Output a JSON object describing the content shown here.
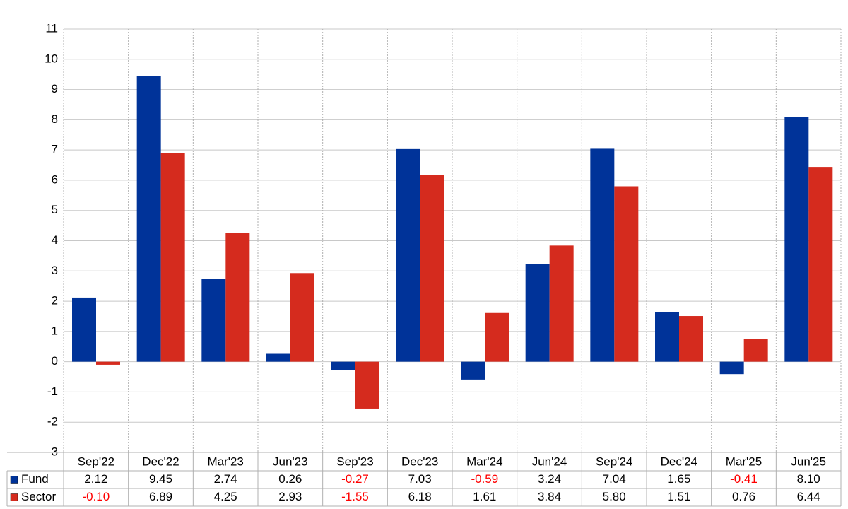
{
  "chart_data": {
    "type": "bar",
    "categories": [
      "Sep'22",
      "Dec'22",
      "Mar'23",
      "Jun'23",
      "Sep'23",
      "Dec'23",
      "Mar'24",
      "Jun'24",
      "Sep'24",
      "Dec'24",
      "Mar'25",
      "Jun'25"
    ],
    "series": [
      {
        "name": "Fund",
        "color": "#003399",
        "values": [
          2.12,
          9.45,
          2.74,
          0.26,
          -0.27,
          7.03,
          -0.59,
          3.24,
          7.04,
          1.65,
          -0.41,
          8.1
        ],
        "value_labels": [
          "2.12",
          "9.45",
          "2.74",
          "0.26",
          "-0.27",
          "7.03",
          "-0.59",
          "3.24",
          "7.04",
          "1.65",
          "-0.41",
          "8.10"
        ]
      },
      {
        "name": "Sector",
        "color": "#d52b1e",
        "values": [
          -0.1,
          6.89,
          4.25,
          2.93,
          -1.55,
          6.18,
          1.61,
          3.84,
          5.8,
          1.51,
          0.76,
          6.44
        ],
        "value_labels": [
          "-0.10",
          "6.89",
          "4.25",
          "2.93",
          "-1.55",
          "6.18",
          "1.61",
          "3.84",
          "5.80",
          "1.51",
          "0.76",
          "6.44"
        ]
      }
    ],
    "ylim": [
      -3,
      11
    ],
    "yticks": [
      -3,
      -2,
      -1,
      0,
      1,
      2,
      3,
      4,
      5,
      6,
      7,
      8,
      9,
      10,
      11
    ],
    "grid": true,
    "negative_label_color": "#ff0000"
  }
}
